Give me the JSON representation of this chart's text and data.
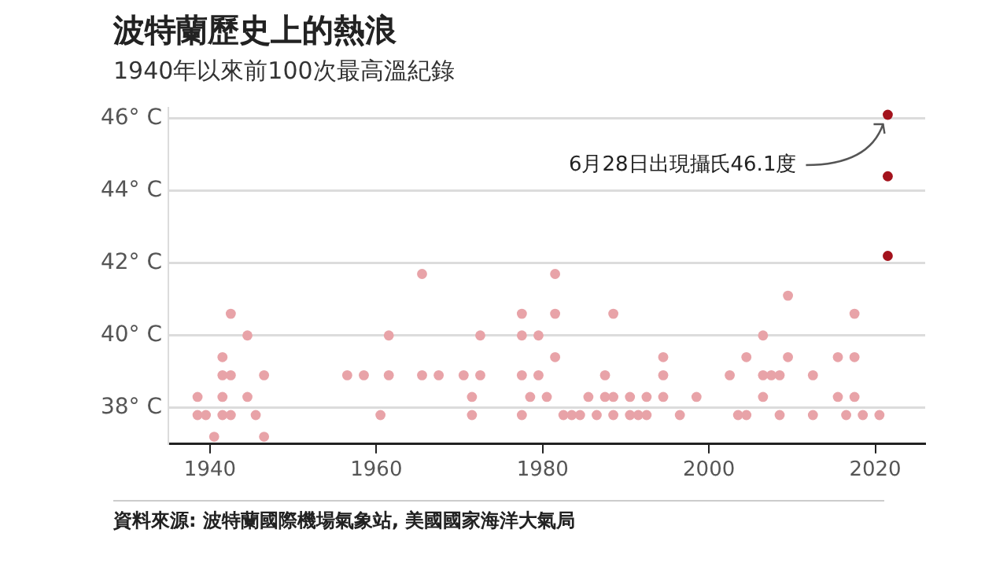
{
  "chart_data": {
    "type": "scatter",
    "title": "波特蘭歷史上的熱浪",
    "subtitle": "1940年以來前100次最高溫紀錄",
    "annotations": [
      {
        "text": "6月28日出現攝氏46.1度",
        "x": 2021.5,
        "y": 46.1
      },
      "資料來源: 波特蘭國際機場氣象站, 美國國家海洋大氣局"
    ],
    "series": [
      {
        "color": "#e8a3a8",
        "x": [
          1942.5,
          1944.5,
          1961.5,
          1941.5,
          1941.5,
          1942.5,
          1946.5,
          1956.5,
          1958.5,
          1961.5,
          1938.5,
          1941.5,
          1944.5,
          1938.5,
          1939.5,
          1941.5,
          1942.5,
          1945.5,
          1960.5,
          1940.5,
          1946.5,
          1965.5,
          1981.5,
          1977.5,
          1981.5,
          1988.5,
          1972.5,
          1977.5,
          1979.5,
          1981.5,
          1994.5,
          1965.5,
          1967.5,
          1970.5,
          1972.5,
          1977.5,
          1979.5,
          1987.5,
          1994.5,
          2002.5,
          1971.5,
          1978.5,
          1980.5,
          1985.5,
          1987.5,
          1988.5,
          1990.5,
          1992.5,
          1994.5,
          1998.5,
          1971.5,
          1977.5,
          1982.5,
          1983.5,
          1984.5,
          1986.5,
          1988.5,
          1990.5,
          1991.5,
          1992.5,
          1996.5,
          2003.5,
          2009.5,
          2017.5,
          2006.5,
          2004.5,
          2009.5,
          2015.5,
          2017.5,
          2006.5,
          2007.5,
          2008.5,
          2012.5,
          2006.5,
          2015.5,
          2017.5,
          2004.5,
          2008.5,
          2012.5,
          2016.5,
          2018.5,
          2020.5
        ],
        "values": [
          40.6,
          40.0,
          40.0,
          39.4,
          38.9,
          38.9,
          38.9,
          38.9,
          38.9,
          38.9,
          38.3,
          38.3,
          38.3,
          37.8,
          37.8,
          37.8,
          37.8,
          37.8,
          37.8,
          37.2,
          37.2,
          41.7,
          41.7,
          40.6,
          40.6,
          40.6,
          40.0,
          40.0,
          40.0,
          39.4,
          39.4,
          38.9,
          38.9,
          38.9,
          38.9,
          38.9,
          38.9,
          38.9,
          38.9,
          38.9,
          38.3,
          38.3,
          38.3,
          38.3,
          38.3,
          38.3,
          38.3,
          38.3,
          38.3,
          38.3,
          37.8,
          37.8,
          37.8,
          37.8,
          37.8,
          37.8,
          37.8,
          37.8,
          37.8,
          37.8,
          37.8,
          37.8,
          41.1,
          40.6,
          40.0,
          39.4,
          39.4,
          39.4,
          39.4,
          38.9,
          38.9,
          38.9,
          38.9,
          38.3,
          38.3,
          38.3,
          37.8,
          37.8,
          37.8,
          37.8,
          37.8,
          37.8
        ]
      },
      {
        "color": "#a3121c",
        "x": [
          2021.5,
          2021.5,
          2021.5
        ],
        "values": [
          46.1,
          44.4,
          42.2
        ]
      }
    ],
    "xlim": [
      1935,
      2026
    ],
    "xticks": [
      1940,
      1960,
      1980,
      2000,
      2020
    ],
    "ylim": [
      37,
      46.3
    ],
    "yticks": [
      {
        "value": 38,
        "label": "38° C"
      },
      {
        "value": 40,
        "label": "40° C"
      },
      {
        "value": 42,
        "label": "42° C"
      },
      {
        "value": 44,
        "label": "44° C"
      },
      {
        "value": 46,
        "label": "46° C"
      }
    ],
    "grid": "y",
    "marker": "circle",
    "legend": false
  }
}
